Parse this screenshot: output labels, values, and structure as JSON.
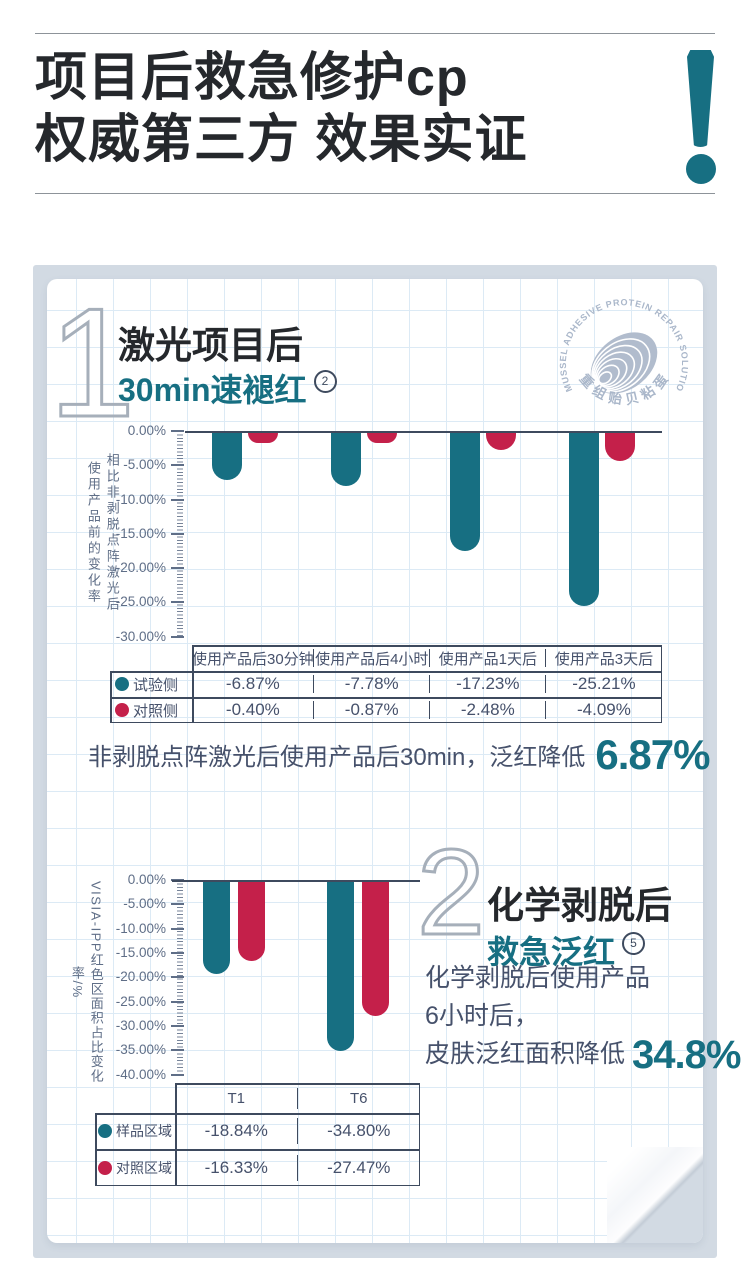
{
  "header": {
    "title_line1": "项目后救急修护cp",
    "title_line2": "权威第三方 效果实证"
  },
  "seal": {
    "text_top": "MUSSEL ADHESIVE PROTEIN REPAIR SOLUTION",
    "text_bottom": "重组贻贝粘蛋白"
  },
  "section1": {
    "number": "1",
    "title": "激光项目后",
    "subtitle": "30min速褪红",
    "footnote_mark": "2",
    "conclusion_prefix": "非剥脱点阵激光后使用产品后30min，泛红降低",
    "conclusion_value": "6.87%"
  },
  "section2": {
    "number": "2",
    "title": "化学剥脱后",
    "subtitle": "救急泛红",
    "footnote_mark": "5",
    "desc_line1": "化学剥脱后使用产品",
    "desc_line2": "6小时后，",
    "desc_line3": "皮肤泛红面积降低",
    "desc_value": "34.8%"
  },
  "colors": {
    "teal": "#176f82",
    "red": "#c4204a",
    "panel": "#d2dae3",
    "ink": "#25282c",
    "axis": "#5f6e87"
  },
  "chart_data": [
    {
      "type": "bar",
      "title": "激光项目后30min速褪红",
      "ylabel": "相比非剥脱点阵激光后使用产品前的变化率",
      "ylabel_col_right": "相比非剥脱点阵激光后使用",
      "ylabel_col_left": "产品前的变化率",
      "ylim": [
        -30,
        0
      ],
      "ytick_labels": [
        "0.00%",
        "-5.00%",
        "-10.00%",
        "-15.00%",
        "-20.00%",
        "-25.00%",
        "-30.00%"
      ],
      "grid": true,
      "legend_position": "table-left",
      "categories": [
        "使用产品后30分钟",
        "使用产品后4小时",
        "使用产品1天后",
        "使用产品3天后"
      ],
      "series": [
        {
          "name": "试验侧",
          "color": "#176f82",
          "values": [
            -6.87,
            -7.78,
            -17.23,
            -25.21
          ],
          "labels": [
            "-6.87%",
            "-7.78%",
            "-17.23%",
            "-25.21%"
          ]
        },
        {
          "name": "对照侧",
          "color": "#c4204a",
          "values": [
            -0.4,
            -0.87,
            -2.48,
            -4.09
          ],
          "labels": [
            "-0.40%",
            "-0.87%",
            "-2.48%",
            "-4.09%"
          ]
        }
      ]
    },
    {
      "type": "bar",
      "title": "化学剥脱后救急泛红",
      "ylabel": "VISIA-IPP红色区面积占比变化率/%",
      "ylim": [
        -40,
        0
      ],
      "ytick_labels": [
        "0.00%",
        "-5.00%",
        "-10.00%",
        "-15.00%",
        "-20.00%",
        "-25.00%",
        "-30.00%",
        "-35.00%",
        "-40.00%"
      ],
      "grid": true,
      "legend_position": "table-left",
      "categories": [
        "T1",
        "T6"
      ],
      "series": [
        {
          "name": "样品区域",
          "color": "#176f82",
          "values": [
            -18.84,
            -34.8
          ],
          "labels": [
            "-18.84%",
            "-34.80%"
          ]
        },
        {
          "name": "对照区域",
          "color": "#c4204a",
          "values": [
            -16.33,
            -27.47
          ],
          "labels": [
            "-16.33%",
            "-27.47%"
          ]
        }
      ]
    }
  ]
}
